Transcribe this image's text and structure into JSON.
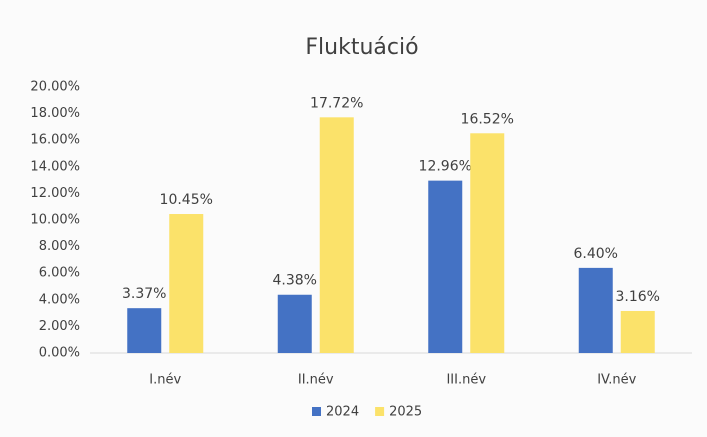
{
  "chart_data": {
    "type": "bar",
    "title": "Fluktuáció",
    "categories": [
      "I.név",
      "II.név",
      "III.név",
      "IV.név"
    ],
    "series": [
      {
        "name": "2024",
        "color": "#4472c4",
        "values": [
          3.37,
          4.38,
          12.96,
          6.4
        ],
        "value_labels": [
          "3.37%",
          "4.38%",
          "12.96%",
          "6.40%"
        ]
      },
      {
        "name": "2025",
        "color": "#fbe26a",
        "values": [
          10.45,
          17.72,
          16.52,
          3.16
        ],
        "value_labels": [
          "10.45%",
          "17.72%",
          "16.52%",
          "3.16%"
        ]
      }
    ],
    "ylim": [
      0,
      20
    ],
    "yticks": [
      {
        "value": 0,
        "label": "0.00%"
      },
      {
        "value": 2,
        "label": "2.00%"
      },
      {
        "value": 4,
        "label": "4.00%"
      },
      {
        "value": 6,
        "label": "6.00%"
      },
      {
        "value": 8,
        "label": "8.00%"
      },
      {
        "value": 10,
        "label": "10.00%"
      },
      {
        "value": 12,
        "label": "12.00%"
      },
      {
        "value": 14,
        "label": "14.00%"
      },
      {
        "value": 16,
        "label": "16.00%"
      },
      {
        "value": 18,
        "label": "18.00%"
      },
      {
        "value": 20,
        "label": "20.00%"
      }
    ],
    "grid": false,
    "legend": "bottom"
  }
}
